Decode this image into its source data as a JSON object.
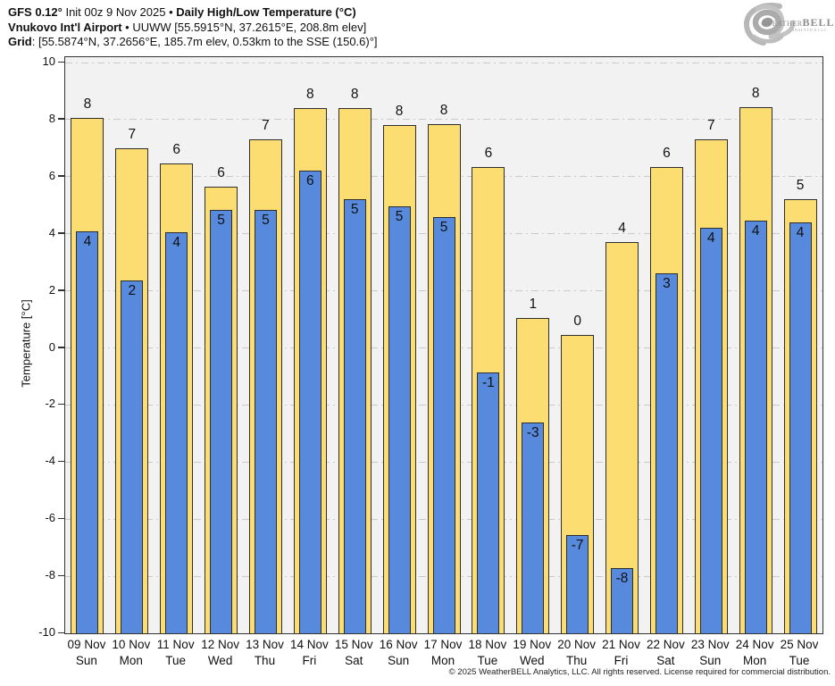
{
  "header": {
    "line1": {
      "bold1": "GFS 0.12°",
      "normal": " Init 00z 9 Nov 2025 • ",
      "bold2": "Daily High/Low Temperature (°C)"
    },
    "line2": {
      "bold": "Vnukovo Int'l Airport",
      "normal": " • UUWW [55.5915°N, 37.2615°E, 208.8m elev]"
    },
    "line3": {
      "bold": "Grid",
      "normal": ": [55.5874°N, 37.2656°E, 185.7m elev, 0.53km to the SSE (150.6)°]"
    }
  },
  "logo": {
    "weather": "Weather",
    "bell": "BELL",
    "sub": "ANALYTICS LLC"
  },
  "chart_data": {
    "type": "bar",
    "title": "Daily High/Low Temperature (°C)",
    "model": "GFS 0.12° Init 00z 9 Nov 2025",
    "station": "Vnukovo Int'l Airport (UUWW)",
    "ylabel": "Temperature [°C]",
    "ylim": [
      -10,
      10
    ],
    "yticks": [
      10,
      8,
      6,
      4,
      2,
      0,
      -2,
      -4,
      -6,
      -8,
      -10
    ],
    "grid": "dashed horizontal at every 2°C",
    "legend_position": "none",
    "bar_style": "columns drawn from axis minimum (-10); yellow = daily high, narrower blue overlay = daily low",
    "categories": [
      {
        "date": "09 Nov",
        "day": "Sun"
      },
      {
        "date": "10 Nov",
        "day": "Mon"
      },
      {
        "date": "11 Nov",
        "day": "Tue"
      },
      {
        "date": "12 Nov",
        "day": "Wed"
      },
      {
        "date": "13 Nov",
        "day": "Thu"
      },
      {
        "date": "14 Nov",
        "day": "Fri"
      },
      {
        "date": "15 Nov",
        "day": "Sat"
      },
      {
        "date": "16 Nov",
        "day": "Sun"
      },
      {
        "date": "17 Nov",
        "day": "Mon"
      },
      {
        "date": "18 Nov",
        "day": "Tue"
      },
      {
        "date": "19 Nov",
        "day": "Wed"
      },
      {
        "date": "20 Nov",
        "day": "Thu"
      },
      {
        "date": "21 Nov",
        "day": "Fri"
      },
      {
        "date": "22 Nov",
        "day": "Sat"
      },
      {
        "date": "23 Nov",
        "day": "Sun"
      },
      {
        "date": "24 Nov",
        "day": "Mon"
      },
      {
        "date": "25 Nov",
        "day": "Tue"
      }
    ],
    "series": [
      {
        "name": "High",
        "color": "#FBDD72",
        "values": [
          8.05,
          7.0,
          6.45,
          5.65,
          7.3,
          8.4,
          8.4,
          7.8,
          7.85,
          6.35,
          1.05,
          0.45,
          3.7,
          6.35,
          7.3,
          8.45,
          5.2
        ],
        "labels": [
          "8",
          "7",
          "6",
          "6",
          "7",
          "8",
          "8",
          "8",
          "8",
          "6",
          "1",
          "0",
          "4",
          "6",
          "7",
          "8",
          "5"
        ]
      },
      {
        "name": "Low",
        "color": "#5789DC",
        "values": [
          4.1,
          2.35,
          4.05,
          4.85,
          4.85,
          6.2,
          5.2,
          4.95,
          4.6,
          -0.85,
          -2.6,
          -6.55,
          -7.7,
          2.6,
          4.2,
          4.45,
          4.4
        ],
        "labels": [
          "4",
          "2",
          "4",
          "5",
          "5",
          "6",
          "5",
          "5",
          "5",
          "-1",
          "-3",
          "-7",
          "-8",
          "3",
          "4",
          "4",
          "4"
        ]
      }
    ],
    "footer": "© 2025 WeatherBELL Analytics, LLC. All rights reserved. License required for commercial distribution."
  }
}
